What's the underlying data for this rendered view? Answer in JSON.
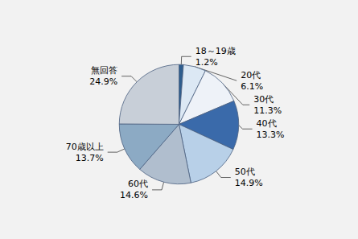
{
  "chart_data": {
    "type": "pie",
    "categories": [
      "18～19歳",
      "20代",
      "30代",
      "40代",
      "50代",
      "60代",
      "70歳以上",
      "無回答"
    ],
    "values": [
      1.2,
      6.1,
      11.3,
      13.3,
      14.9,
      14.6,
      13.7,
      24.9
    ],
    "value_labels": [
      "1.2%",
      "6.1%",
      "11.3%",
      "13.3%",
      "14.9%",
      "14.6%",
      "13.7%",
      "24.9%"
    ],
    "colors": [
      "#2e5d8e",
      "#dce8f4",
      "#eef2f8",
      "#3a6aaa",
      "#b8d0e8",
      "#b0bece",
      "#8caac4",
      "#c8cfd8"
    ],
    "data_labels": true,
    "legend": false
  }
}
